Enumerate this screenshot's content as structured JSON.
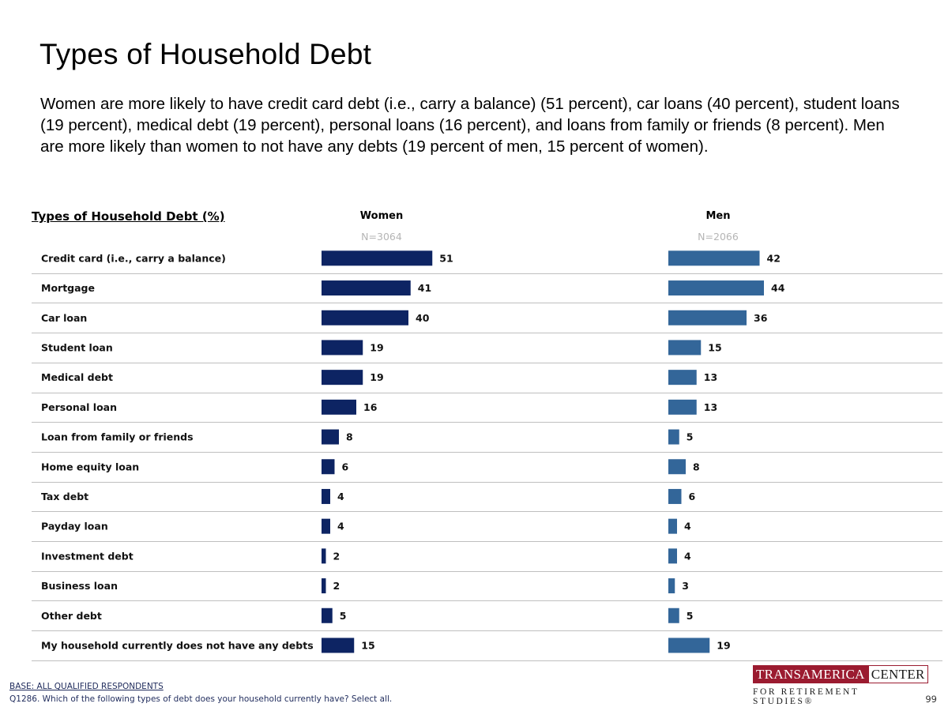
{
  "page": {
    "title": "Types of Household Debt",
    "subtitle": "Women are more likely to have credit card debt (i.e., carry a balance) (51 percent), car loans (40 percent), student loans (19 percent), medical debt (19 percent), personal loans (16 percent), and loans from family or friends (8 percent). Men are more likely than women to not have any debts (19 percent of men, 15 percent of women).",
    "section_label": "Types of Household Debt (%)",
    "footer_base": "BASE: ALL QUALIFIED RESPONDENTS",
    "footer_question": "Q1286. Which of the following types of debt does your household currently have? Select all.",
    "logo_left": "TRANSAMERICA",
    "logo_right": "CENTER",
    "logo_bottom": "FOR RETIREMENT STUDIES®",
    "page_number": "99"
  },
  "chart_data": {
    "type": "bar",
    "orientation": "horizontal",
    "categories": [
      "Credit card (i.e., carry a balance)",
      "Mortgage",
      "Car loan",
      "Student loan",
      "Medical debt",
      "Personal loan",
      "Loan from family or friends",
      "Home equity loan",
      "Tax debt",
      "Payday loan",
      "Investment debt",
      "Business loan",
      "Other debt",
      "My household currently does not have any debts"
    ],
    "series": [
      {
        "name": "Women",
        "n_label": "N=3064",
        "color": "#0d2463",
        "values": [
          51,
          41,
          40,
          19,
          19,
          16,
          8,
          6,
          4,
          4,
          2,
          2,
          5,
          15
        ]
      },
      {
        "name": "Men",
        "n_label": "N=2066",
        "color": "#336699",
        "values": [
          42,
          44,
          36,
          15,
          13,
          13,
          5,
          8,
          6,
          4,
          4,
          3,
          5,
          19
        ]
      }
    ],
    "xlim": [
      0,
      100
    ],
    "grid": false,
    "legend": "none"
  }
}
